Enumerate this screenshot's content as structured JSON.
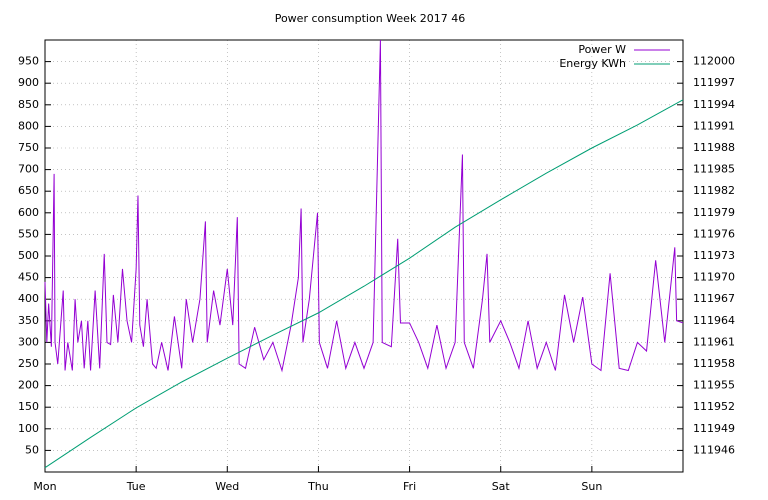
{
  "chart_data": {
    "type": "line",
    "title": "Power consumption Week 2017 46",
    "xlim": [
      0,
      7
    ],
    "xticks": [
      {
        "value": 0,
        "label": "Mon"
      },
      {
        "value": 1,
        "label": "Tue"
      },
      {
        "value": 2,
        "label": "Wed"
      },
      {
        "value": 3,
        "label": "Thu"
      },
      {
        "value": 4,
        "label": "Fri"
      },
      {
        "value": 5,
        "label": "Sat"
      },
      {
        "value": 6,
        "label": "Sun"
      }
    ],
    "ylim": [
      0,
      1000
    ],
    "yticks": [
      50,
      100,
      150,
      200,
      250,
      300,
      350,
      400,
      450,
      500,
      550,
      600,
      650,
      700,
      750,
      800,
      850,
      900,
      950
    ],
    "y2lim": [
      111943,
      112003
    ],
    "y2ticks": [
      111946,
      111949,
      111952,
      111955,
      111958,
      111961,
      111964,
      111967,
      111970,
      111973,
      111976,
      111979,
      111982,
      111985,
      111988,
      111991,
      111994,
      111997,
      112000
    ],
    "grid": true,
    "legend": "top-right",
    "series": [
      {
        "name": "Power W",
        "color": "#9400d3",
        "x": [
          0,
          0.02,
          0.04,
          0.07,
          0.1,
          0.11,
          0.14,
          0.2,
          0.22,
          0.25,
          0.3,
          0.33,
          0.36,
          0.4,
          0.43,
          0.47,
          0.5,
          0.55,
          0.6,
          0.65,
          0.68,
          0.72,
          0.75,
          0.8,
          0.85,
          0.9,
          0.95,
          1.0,
          1.02,
          1.04,
          1.08,
          1.12,
          1.18,
          1.22,
          1.28,
          1.35,
          1.42,
          1.5,
          1.55,
          1.62,
          1.7,
          1.76,
          1.78,
          1.85,
          1.92,
          2.0,
          2.06,
          2.11,
          2.13,
          2.2,
          2.3,
          2.4,
          2.5,
          2.6,
          2.7,
          2.78,
          2.81,
          2.83,
          2.9,
          2.99,
          3.01,
          3.1,
          3.2,
          3.3,
          3.4,
          3.5,
          3.6,
          3.68,
          3.7,
          3.8,
          3.87,
          3.9,
          4.0,
          4.1,
          4.2,
          4.3,
          4.4,
          4.5,
          4.58,
          4.6,
          4.7,
          4.8,
          4.85,
          4.88,
          5.0,
          5.1,
          5.2,
          5.3,
          5.4,
          5.5,
          5.6,
          5.7,
          5.8,
          5.9,
          6.0,
          6.1,
          6.2,
          6.3,
          6.4,
          6.5,
          6.6,
          6.7,
          6.8,
          6.91,
          6.93,
          7.0
        ],
        "values": [
          440,
          300,
          390,
          290,
          690,
          300,
          250,
          420,
          235,
          300,
          235,
          400,
          300,
          350,
          240,
          350,
          235,
          420,
          240,
          505,
          300,
          295,
          410,
          300,
          470,
          350,
          300,
          470,
          640,
          340,
          290,
          400,
          250,
          240,
          300,
          235,
          360,
          240,
          400,
          300,
          400,
          580,
          300,
          420,
          340,
          470,
          340,
          590,
          250,
          240,
          335,
          260,
          300,
          235,
          340,
          450,
          610,
          300,
          400,
          600,
          300,
          240,
          350,
          240,
          300,
          240,
          300,
          1000,
          300,
          290,
          540,
          345,
          345,
          300,
          240,
          340,
          240,
          300,
          735,
          300,
          240,
          400,
          505,
          300,
          350,
          300,
          240,
          350,
          240,
          300,
          235,
          410,
          300,
          405,
          250,
          235,
          460,
          240,
          235,
          300,
          280,
          490,
          300,
          520,
          350,
          345
        ]
      },
      {
        "name": "Energy KWh",
        "color": "#009e73",
        "axis": "y2",
        "x": [
          0,
          0.5,
          1,
          1.5,
          2,
          2.5,
          3,
          3.5,
          4,
          4.5,
          5,
          5.5,
          6,
          6.5,
          7
        ],
        "values": [
          111943.6,
          111947.8,
          111951.9,
          111955.5,
          111958.8,
          111962,
          111965.1,
          111968.8,
          111972.7,
          111977,
          111980.8,
          111984.5,
          111988,
          111991.2,
          111994.7
        ]
      }
    ]
  }
}
